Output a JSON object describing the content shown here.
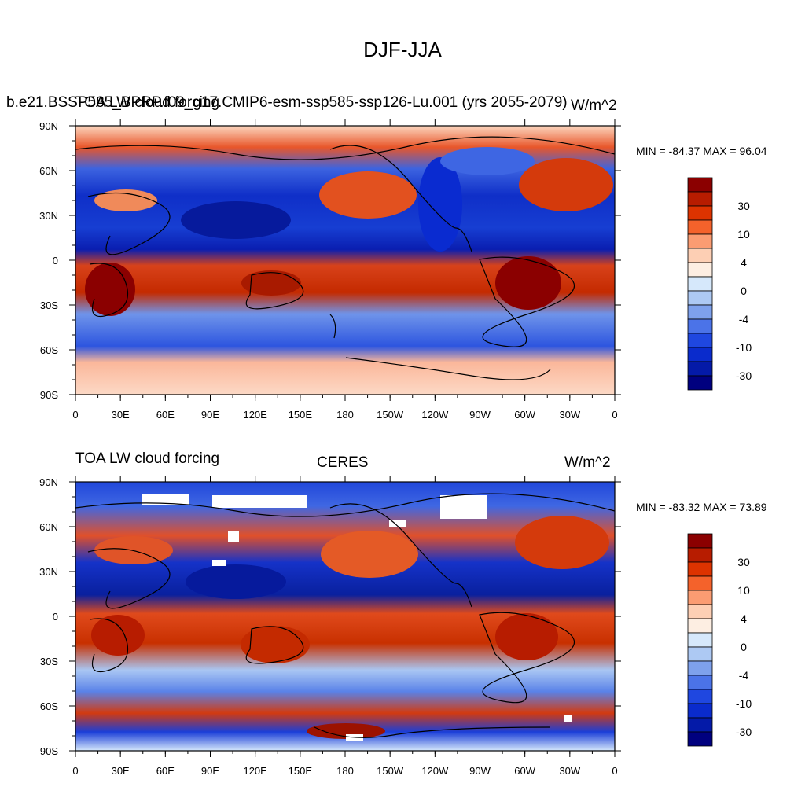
{
  "main_title": "DJF-JJA",
  "x_tick_labels": [
    "0",
    "30E",
    "60E",
    "90E",
    "120E",
    "150E",
    "180",
    "150W",
    "120W",
    "90W",
    "60W",
    "30W",
    "0"
  ],
  "y_tick_labels": [
    "90N",
    "60N",
    "30N",
    "0",
    "30S",
    "60S",
    "90S"
  ],
  "colorbar_labels": [
    "30",
    "10",
    "4",
    "0",
    "-4",
    "-10",
    "-30"
  ],
  "colorbar_colors": [
    "#8b0000",
    "#b71c00",
    "#dd3300",
    "#f4622b",
    "#fb9c72",
    "#fdcfb4",
    "#fdeee2",
    "#d6e8fb",
    "#adc9f3",
    "#7ea1ec",
    "#4b73e8",
    "#1f47e0",
    "#0a2bcc",
    "#041aa8",
    "#00007f"
  ],
  "panels": [
    {
      "left_title": "b.e21.BSSP585_BPRP.f09_g17.CMIP6-esm-ssp585-ssp126-Lu.001 (yrs 2055-2079)",
      "overlap_title": "TOA LW cloud forcing",
      "center_title": "",
      "right_title": "W/m^2",
      "stats": "MIN = -84.37 MAX =  96.04",
      "colors": {
        "warm": "#c42a00",
        "cool": "#0a2bd0"
      }
    },
    {
      "left_title": "TOA LW cloud forcing",
      "center_title": "CERES",
      "right_title": "W/m^2",
      "stats": "MIN = -83.32 MAX =  73.89",
      "colors": {
        "warm": "#d8400e",
        "cool": "#1d47e0"
      }
    }
  ]
}
